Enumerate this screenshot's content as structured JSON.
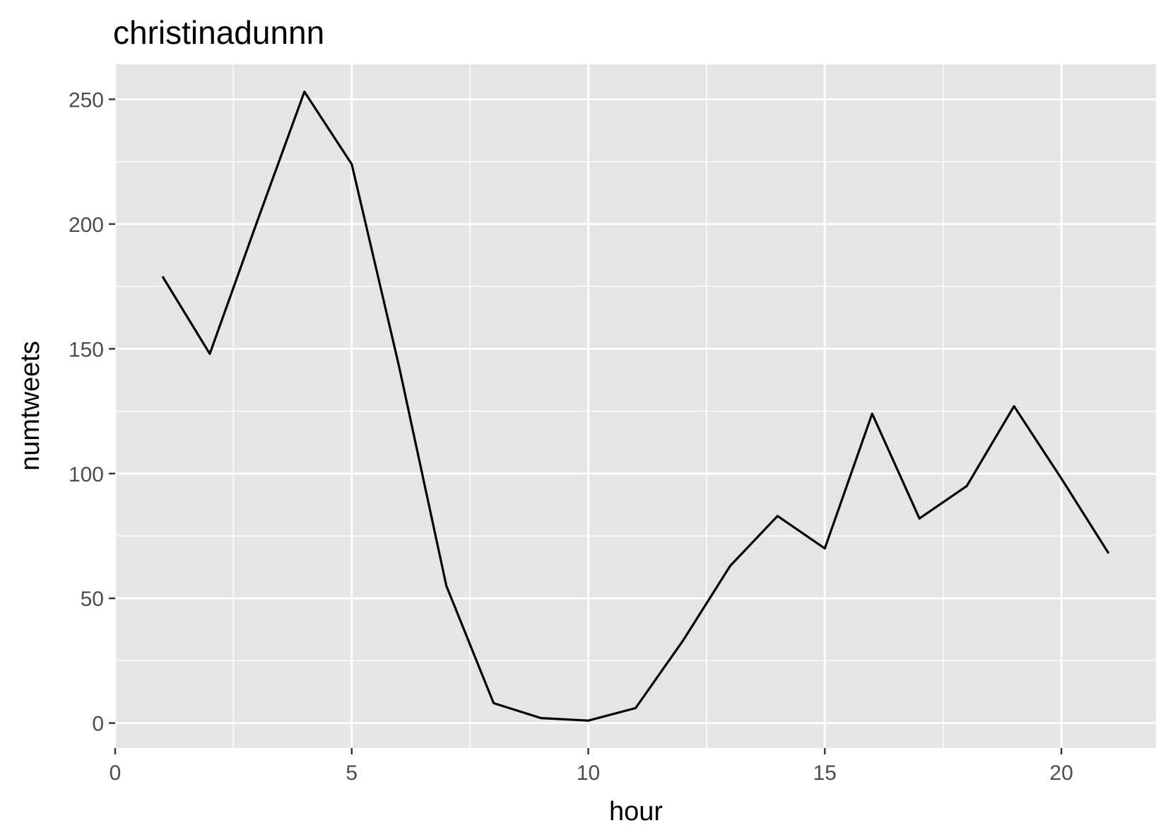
{
  "chart_data": {
    "type": "line",
    "title": "christinadunnn",
    "xlabel": "hour",
    "ylabel": "numtweets",
    "xlim": [
      0,
      22
    ],
    "ylim": [
      -10,
      264
    ],
    "xticks": [
      0,
      5,
      10,
      15,
      20
    ],
    "yticks": [
      0,
      50,
      100,
      150,
      200,
      250
    ],
    "grid": true,
    "panel_background": "#e5e5e5",
    "grid_color": "#ffffff",
    "line_color": "#000000",
    "series": [
      {
        "x": [
          1,
          2,
          3,
          4,
          5,
          6,
          7,
          8,
          9,
          10,
          11,
          12,
          13,
          14,
          15,
          16,
          17,
          18,
          19,
          20,
          21
        ],
        "values": [
          179,
          148,
          201,
          253,
          224,
          143,
          55,
          8,
          2,
          1,
          6,
          33,
          63,
          83,
          70,
          124,
          82,
          95,
          127,
          98,
          68
        ]
      }
    ]
  }
}
